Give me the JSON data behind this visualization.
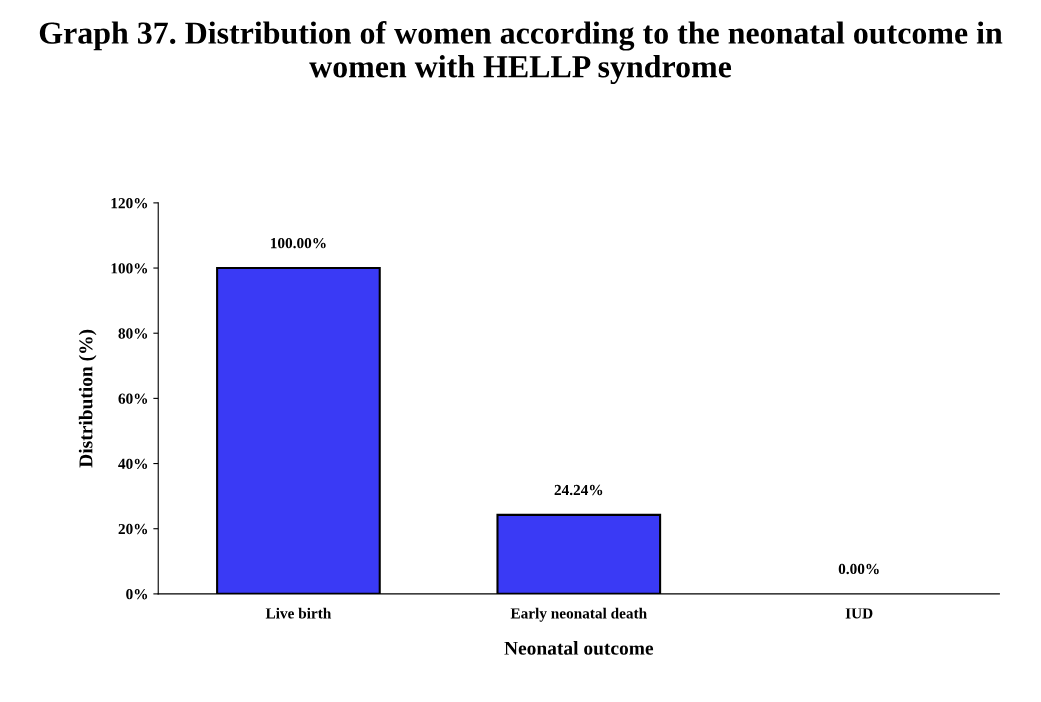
{
  "chart_data": {
    "type": "bar",
    "title": "Graph 37. Distribution of women according to the neonatal outcome in women with HELLP syndrome",
    "xlabel": "Neonatal outcome",
    "ylabel": "Distribution (%)",
    "categories": [
      "Live birth",
      "Early neonatal death",
      "IUD"
    ],
    "values": [
      100,
      24.24,
      0
    ],
    "value_labels": [
      "100.00%",
      "24.24%",
      "0.00%"
    ],
    "color": "#3a3af5",
    "ylim": [
      0,
      120
    ],
    "yticks": [
      {
        "value": 0,
        "label": "0%"
      },
      {
        "value": 20,
        "label": "20%"
      },
      {
        "value": 40,
        "label": "40%"
      },
      {
        "value": 60,
        "label": "60%"
      },
      {
        "value": 80,
        "label": "80%"
      },
      {
        "value": 100,
        "label": "100%"
      },
      {
        "value": 120,
        "label": "120%"
      }
    ],
    "grid": false,
    "legend": false
  }
}
